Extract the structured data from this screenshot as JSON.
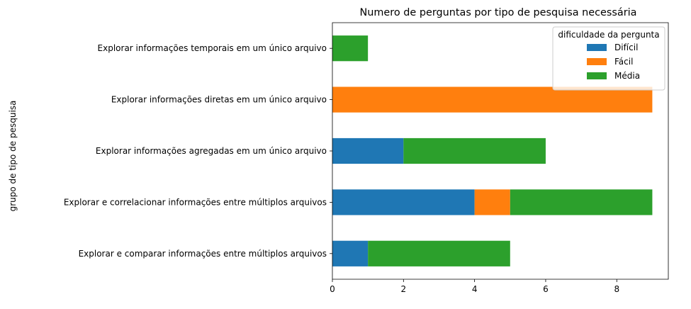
{
  "chart_data": {
    "type": "bar",
    "orientation": "horizontal",
    "stacked": true,
    "title": "Numero de perguntas por tipo de pesquisa necessária",
    "xlabel": "",
    "ylabel": "grupo de tipo de pesquisa",
    "categories": [
      "Explorar e comparar informações entre múltiplos arquivos",
      "Explorar e correlacionar informações entre múltiplos arquivos",
      "Explorar informações agregadas em um único arquivo",
      "Explorar informações diretas em um único arquivo",
      "Explorar informações temporais em um único arquivo"
    ],
    "series": [
      {
        "name": "Difícil",
        "color": "#1f77b4",
        "values": [
          1,
          4,
          2,
          0,
          0
        ]
      },
      {
        "name": "Fácil",
        "color": "#ff7f0e",
        "values": [
          0,
          1,
          0,
          9,
          0
        ]
      },
      {
        "name": "Média",
        "color": "#2ca02c",
        "values": [
          4,
          4,
          4,
          0,
          1
        ]
      }
    ],
    "xlim": [
      0,
      9.45
    ],
    "xticks": [
      0,
      2,
      4,
      6,
      8
    ],
    "legend": {
      "title": "dificuldade da pergunta",
      "position": "top-right"
    },
    "grid": false
  }
}
